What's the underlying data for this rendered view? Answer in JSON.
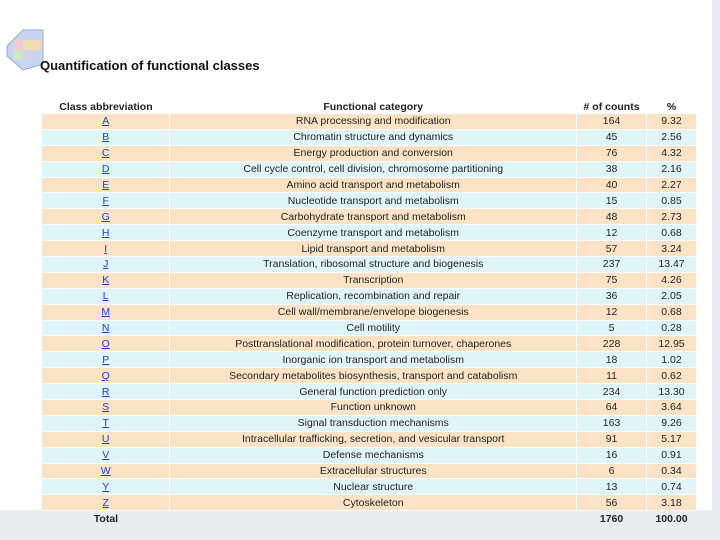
{
  "title": "Quantification of functional classes",
  "table": {
    "header": [
      "Class abbreviation",
      "Functional category",
      "# of counts",
      "%"
    ],
    "rows": [
      [
        "A",
        "RNA processing and modification",
        "164",
        "9.32"
      ],
      [
        "B",
        "Chromatin structure and dynamics",
        "45",
        "2.56"
      ],
      [
        "C",
        "Energy production and conversion",
        "76",
        "4.32"
      ],
      [
        "D",
        "Cell cycle control, cell division, chromosome partitioning",
        "38",
        "2.16"
      ],
      [
        "E",
        "Amino acid transport and metabolism",
        "40",
        "2.27"
      ],
      [
        "F",
        "Nucleotide transport and metabolism",
        "15",
        "0.85"
      ],
      [
        "G",
        "Carbohydrate transport and metabolism",
        "48",
        "2.73"
      ],
      [
        "H",
        "Coenzyme transport and metabolism",
        "12",
        "0.68"
      ],
      [
        "I",
        "Lipid transport and metabolism",
        "57",
        "3.24"
      ],
      [
        "J",
        "Translation, ribosomal structure and biogenesis",
        "237",
        "13.47"
      ],
      [
        "K",
        "Transcription",
        "75",
        "4.26"
      ],
      [
        "L",
        "Replication, recombination and repair",
        "36",
        "2.05"
      ],
      [
        "M",
        "Cell wall/membrane/envelope biogenesis",
        "12",
        "0.68"
      ],
      [
        "N",
        "Cell motility",
        "5",
        "0.28"
      ],
      [
        "O",
        "Posttranslational modification, protein turnover, chaperones",
        "228",
        "12.95"
      ],
      [
        "P",
        "Inorganic ion transport and metabolism",
        "18",
        "1.02"
      ],
      [
        "Q",
        "Secondary metabolites biosynthesis, transport and catabolism",
        "11",
        "0.62"
      ],
      [
        "R",
        "General function prediction only",
        "234",
        "13.30"
      ],
      [
        "S",
        "Function unknown",
        "64",
        "3.64"
      ],
      [
        "T",
        "Signal transduction mechanisms",
        "163",
        "9.26"
      ],
      [
        "U",
        "Intracellular trafficking, secretion, and vesicular transport",
        "91",
        "5.17"
      ],
      [
        "V",
        "Defense mechanisms",
        "16",
        "0.91"
      ],
      [
        "W",
        "Extracellular structures",
        "6",
        "0.34"
      ],
      [
        "Y",
        "Nuclear structure",
        "13",
        "0.74"
      ],
      [
        "Z",
        "Cytoskeleton",
        "56",
        "3.18"
      ]
    ],
    "total": [
      "Total",
      "1760",
      "100.00"
    ]
  }
}
